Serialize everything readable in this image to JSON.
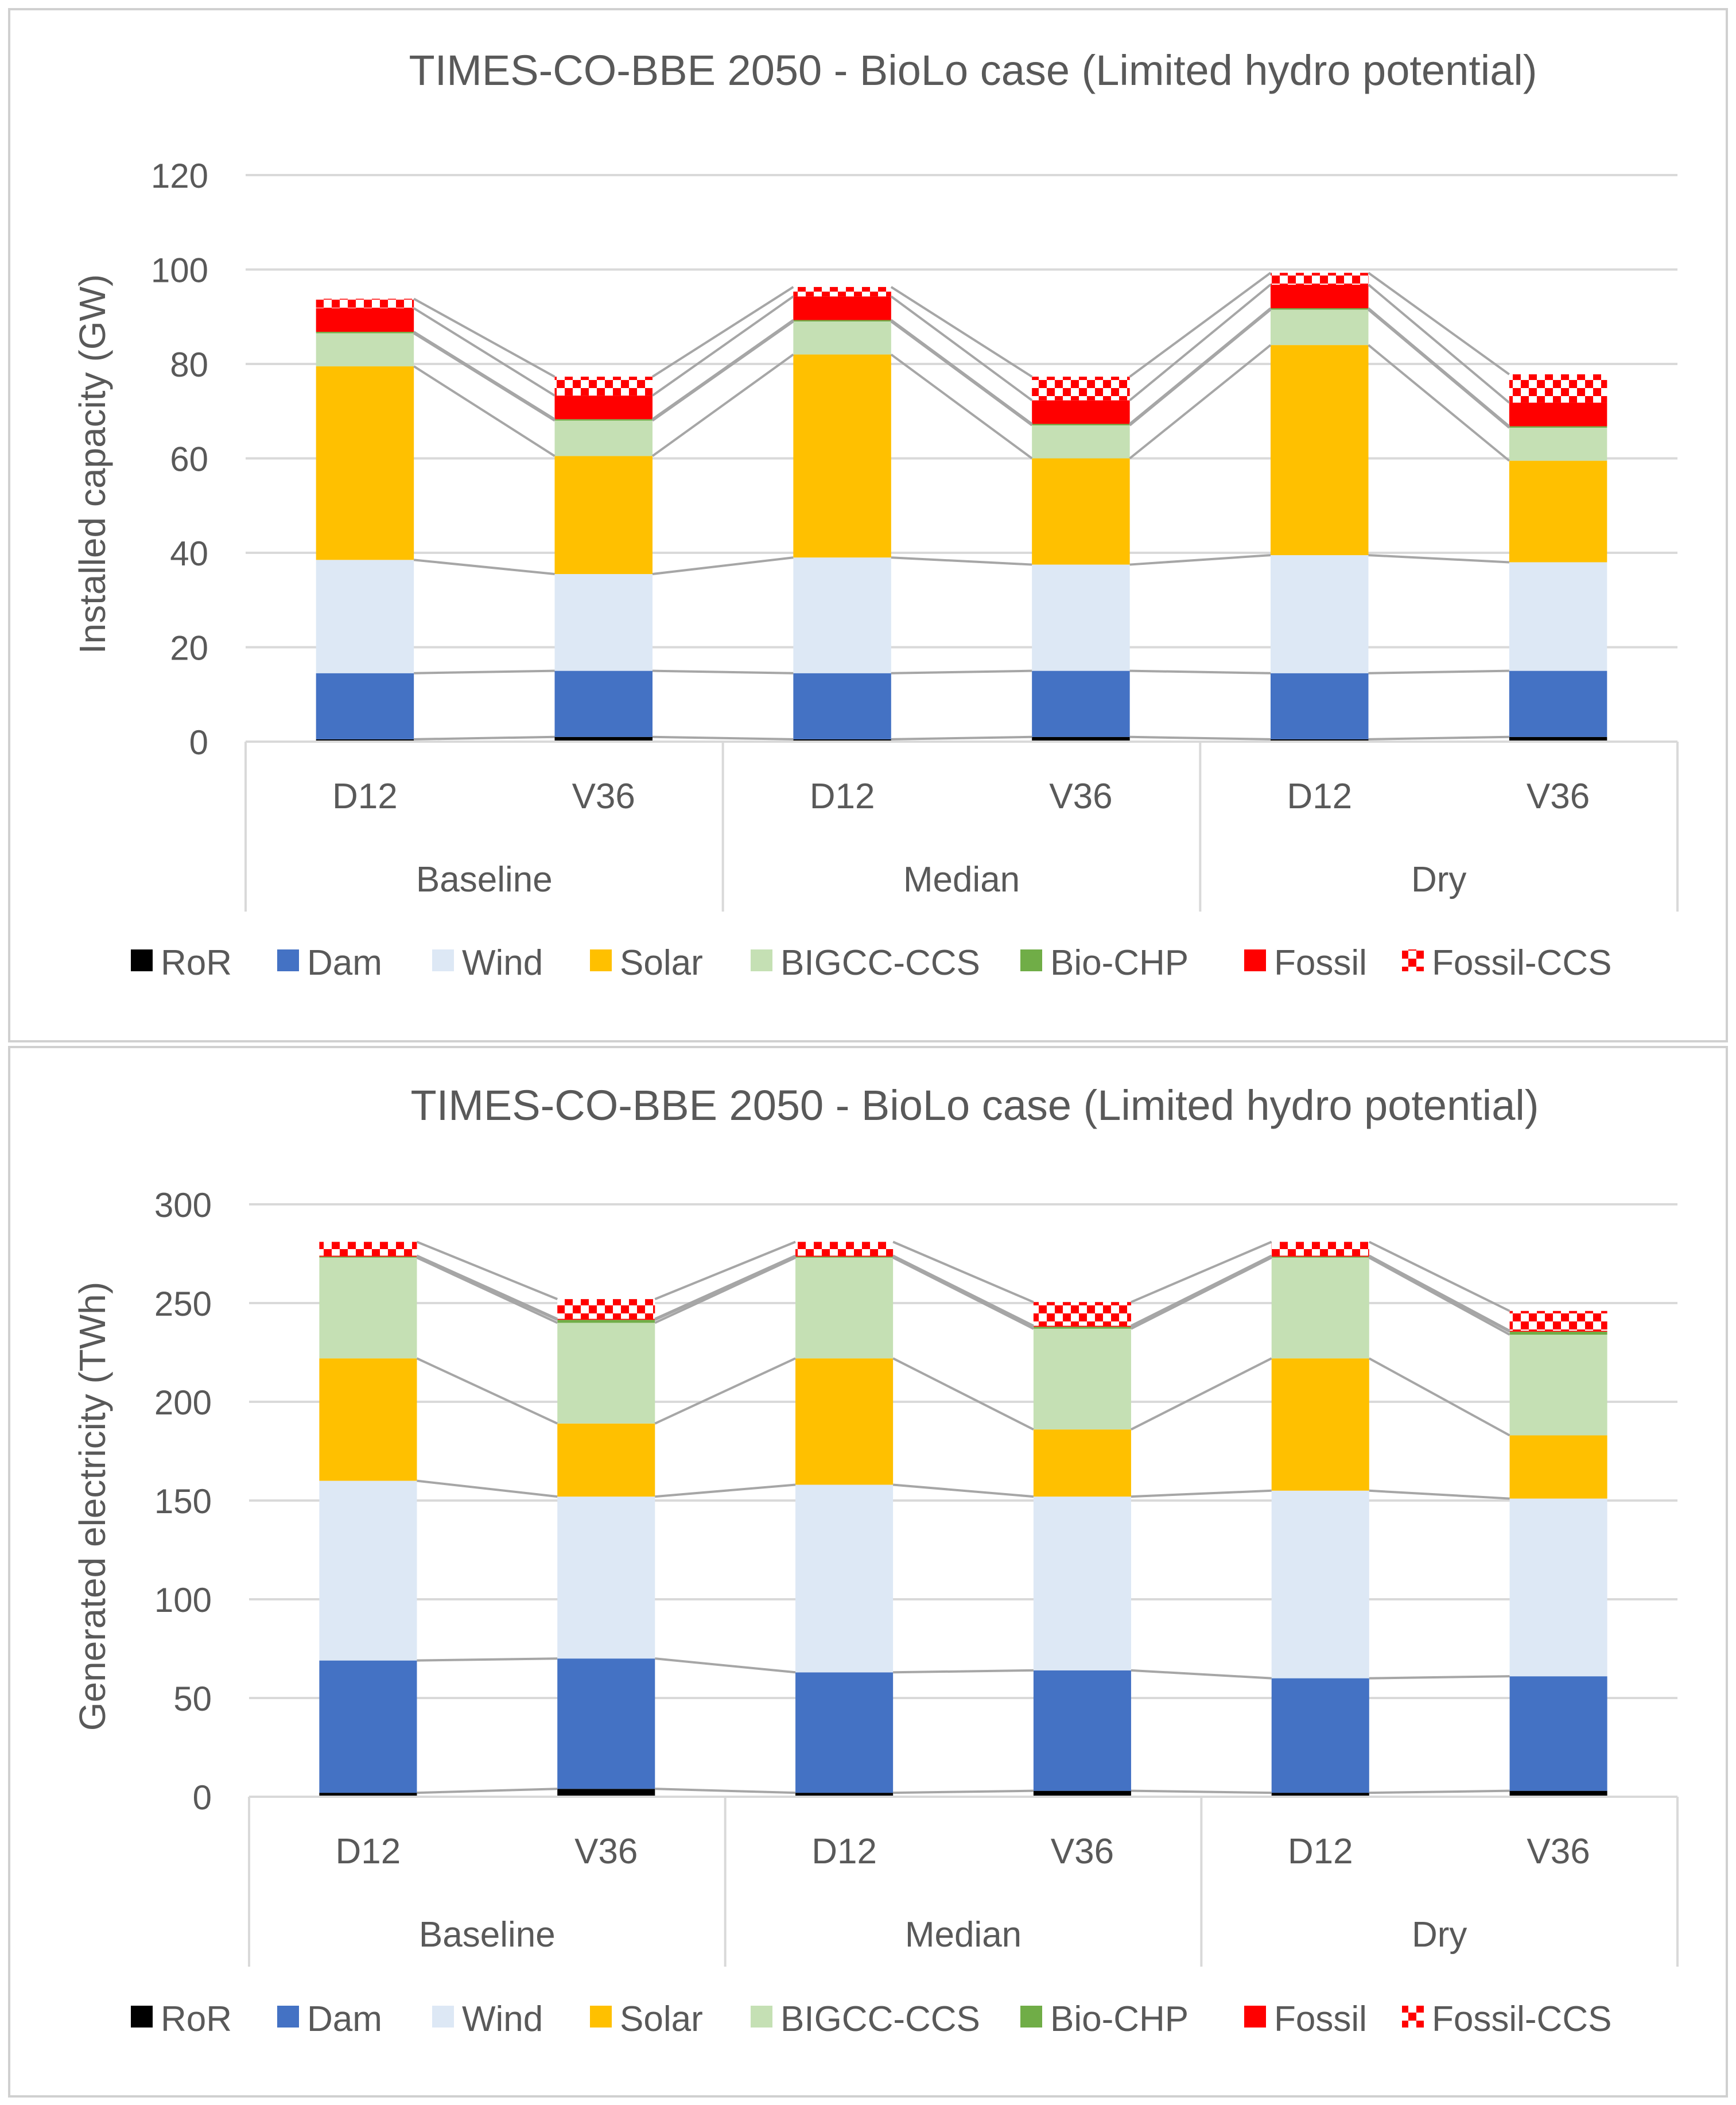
{
  "colors": {
    "RoR": "#000000",
    "Dam": "#4472C4",
    "Wind": "#DDE8F5",
    "Solar": "#FFC000",
    "BIGCC-CCS": "#C5E0B4",
    "Bio-CHP": "#70AD47",
    "Fossil": "#FF0000",
    "Fossil-CCS": "#FF0000",
    "gridline": "#D9D9D9",
    "connector": "#A6A6A6",
    "text": "#595959"
  },
  "chart_data": [
    {
      "type": "bar",
      "stacked": true,
      "title": "TIMES-CO-BBE 2050 - BioLo case (Limited hydro potential)",
      "ylabel": "Installed capacity (GW)",
      "xlabel": "",
      "ylim": [
        0,
        120
      ],
      "yticks": [
        0,
        20,
        40,
        60,
        80,
        100,
        120
      ],
      "grid": true,
      "legend_position": "bottom",
      "categories": [
        "D12",
        "V36",
        "D12",
        "V36",
        "D12",
        "V36"
      ],
      "groups": [
        "Baseline",
        "Median",
        "Dry"
      ],
      "series": [
        {
          "name": "RoR",
          "values": [
            0.5,
            1,
            0.5,
            1,
            0.5,
            1
          ]
        },
        {
          "name": "Dam",
          "values": [
            14,
            14,
            14,
            14,
            14,
            14
          ]
        },
        {
          "name": "Wind",
          "values": [
            24,
            20.5,
            24.5,
            22.5,
            25,
            23
          ]
        },
        {
          "name": "Solar",
          "values": [
            41,
            25,
            43,
            22.5,
            44.5,
            21.5
          ]
        },
        {
          "name": "BIGCC-CCS",
          "values": [
            7,
            7.5,
            7,
            7,
            7.5,
            7
          ]
        },
        {
          "name": "Bio-CHP",
          "values": [
            0.3,
            0.3,
            0.3,
            0.3,
            0.3,
            0.3
          ]
        },
        {
          "name": "Fossil",
          "values": [
            5,
            5,
            5,
            5,
            5,
            5
          ]
        },
        {
          "name": "Fossil-CCS",
          "values": [
            2,
            4,
            2,
            5,
            2.5,
            6
          ]
        }
      ]
    },
    {
      "type": "bar",
      "stacked": true,
      "title": "TIMES-CO-BBE 2050 - BioLo case (Limited hydro potential)",
      "ylabel": "Generated electricity (TWh)",
      "xlabel": "",
      "ylim": [
        0,
        300
      ],
      "yticks": [
        0,
        50,
        100,
        150,
        200,
        250,
        300
      ],
      "grid": true,
      "legend_position": "bottom",
      "categories": [
        "D12",
        "V36",
        "D12",
        "V36",
        "D12",
        "V36"
      ],
      "groups": [
        "Baseline",
        "Median",
        "Dry"
      ],
      "series": [
        {
          "name": "RoR",
          "values": [
            2,
            4,
            2,
            3,
            2,
            3
          ]
        },
        {
          "name": "Dam",
          "values": [
            67,
            66,
            61,
            61,
            58,
            58
          ]
        },
        {
          "name": "Wind",
          "values": [
            91,
            82,
            95,
            88,
            95,
            90
          ]
        },
        {
          "name": "Solar",
          "values": [
            62,
            37,
            64,
            34,
            67,
            32
          ]
        },
        {
          "name": "BIGCC-CCS",
          "values": [
            51,
            51,
            51,
            51,
            51,
            51
          ]
        },
        {
          "name": "Bio-CHP",
          "values": [
            0.5,
            1.5,
            0.5,
            1,
            0.5,
            1.5
          ]
        },
        {
          "name": "Fossil",
          "values": [
            0.5,
            0.5,
            0.5,
            0.5,
            0.5,
            0.5
          ]
        },
        {
          "name": "Fossil-CCS",
          "values": [
            7,
            10,
            7,
            12,
            7,
            10
          ]
        }
      ]
    }
  ]
}
